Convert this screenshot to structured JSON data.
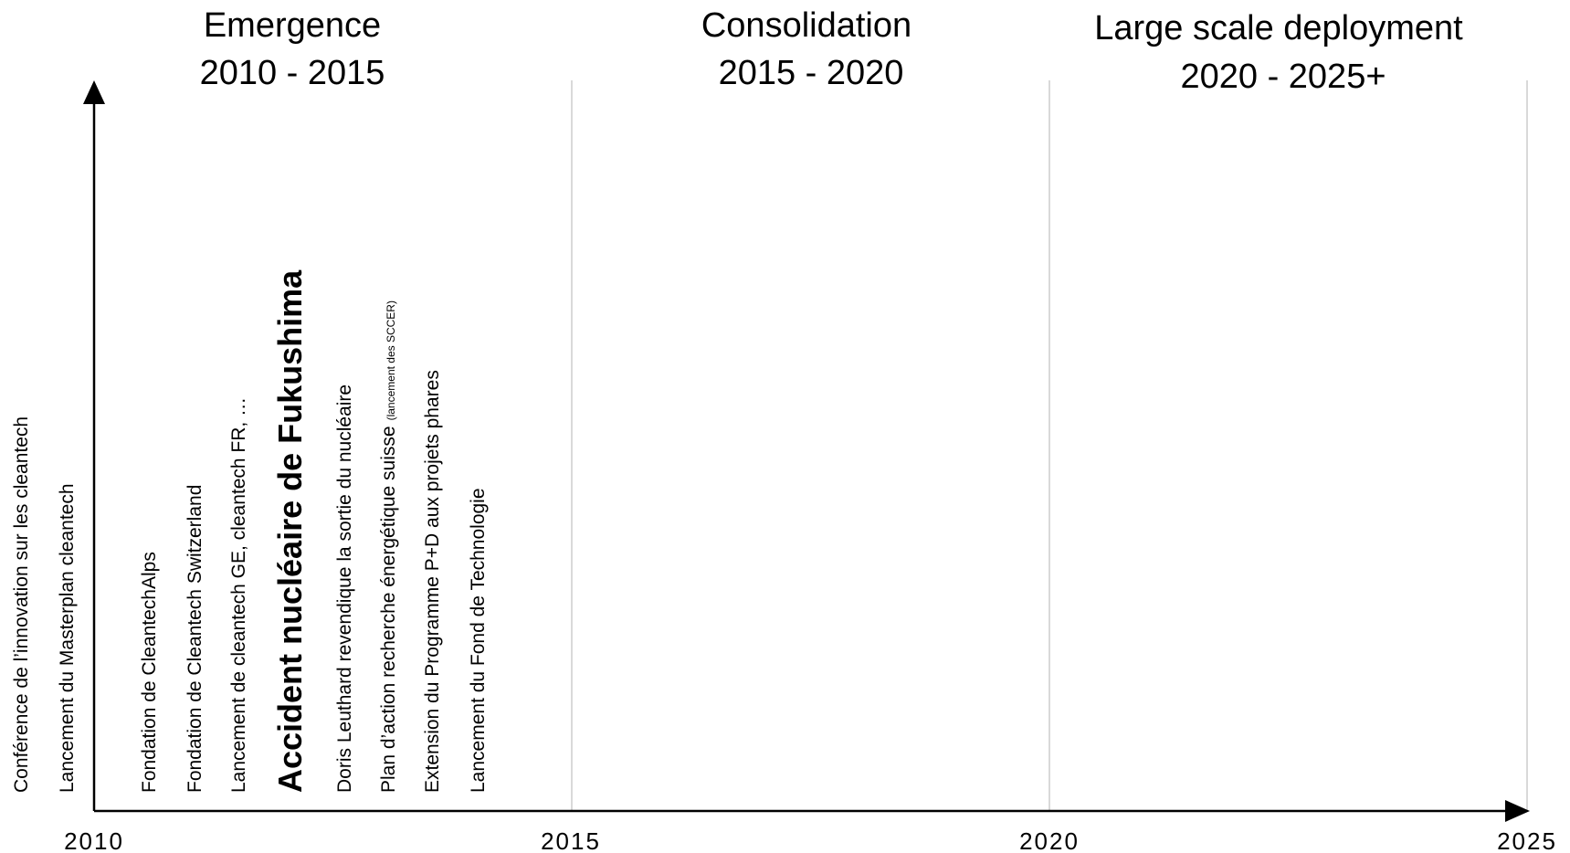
{
  "phases": [
    {
      "name": "Emergence",
      "period": "2010 - 2015"
    },
    {
      "name": "Consolidation",
      "period": "2015 - 2020"
    },
    {
      "name": "Large scale deployment",
      "period": "2020 - 2025+"
    }
  ],
  "axis": {
    "years": [
      "2010",
      "2015",
      "2020",
      "2025"
    ]
  },
  "events": [
    {
      "label": "Conférence de l’innovation sur les cleantech"
    },
    {
      "label": "Lancement du Masterplan cleantech"
    },
    {
      "label": "Fondation de CleantechAlps"
    },
    {
      "label": "Fondation de Cleantech Switzerland"
    },
    {
      "label": "Lancement de cleantech GE, cleantech FR, …"
    },
    {
      "label": "Accident nucléaire de Fukushima",
      "emphasis": true
    },
    {
      "label": "Doris Leuthard revendique la sortie du nucléaire"
    },
    {
      "label": "Plan d’action recherche énergétique suisse",
      "note": "(lancement des SCCER)"
    },
    {
      "label": "Extension du Programme P+D aux projets phares"
    },
    {
      "label": "Lancement du Fond de Technologie"
    }
  ],
  "colors": {
    "axis": "#000000",
    "divider": "#d9d9d9",
    "text": "#000000"
  }
}
